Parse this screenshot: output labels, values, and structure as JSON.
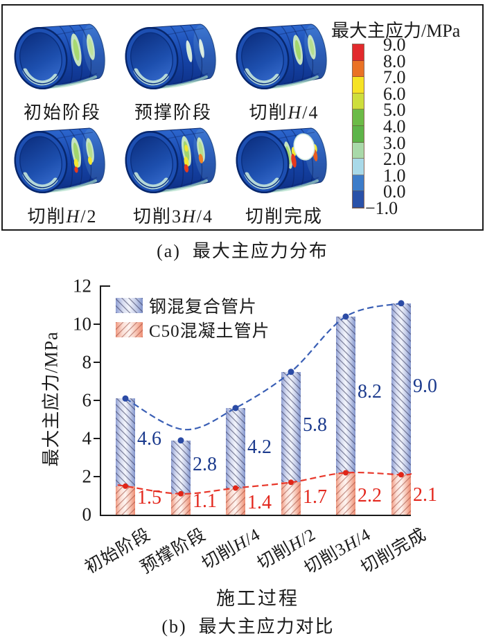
{
  "figure": {
    "panel_a": {
      "caption": "(a)  最大主应力分布",
      "stages": [
        {
          "label": "初始阶段"
        },
        {
          "label": "预撑阶段"
        },
        {
          "label": "切削H/4"
        },
        {
          "label": "切削H/2"
        },
        {
          "label": "切削3H/4"
        },
        {
          "label": "切削完成"
        }
      ],
      "colorbar": {
        "title": "最大主应力/MPa",
        "tick_labels": [
          "9.0",
          "8.0",
          "7.0",
          "6.0",
          "5.0",
          "4.0",
          "3.0",
          "2.0",
          "1.0",
          "0.0",
          "−1.0"
        ],
        "segment_colors": [
          "#e22a2c",
          "#ea7225",
          "#f6e324",
          "#cede3c",
          "#6cbb47",
          "#5eb449",
          "#a9d9a9",
          "#a9d9e8",
          "#3d7cc9",
          "#2a51a8"
        ]
      }
    },
    "panel_b": {
      "caption": "(b)  最大主应力对比"
    }
  },
  "chart_data": {
    "type": "bar",
    "title": "",
    "xlabel": "施工过程",
    "ylabel": "最大主应力/MPa",
    "categories": [
      "初始阶段",
      "预撑阶段",
      "切削H/4",
      "切削H/2",
      "切削3H/4",
      "切削完成"
    ],
    "series": [
      {
        "name": "钢混复合管片",
        "values": [
          4.6,
          2.8,
          4.2,
          5.8,
          8.2,
          9.0
        ],
        "labels": [
          "4.6",
          "2.8",
          "4.2",
          "5.8",
          "8.2",
          "9.0"
        ],
        "bar_color": "#8f9fd3",
        "label_color": "#1b3a8d",
        "hatch": "\\"
      },
      {
        "name": "C50混凝土管片",
        "values": [
          1.5,
          1.1,
          1.4,
          1.7,
          2.2,
          2.1
        ],
        "labels": [
          "1.5",
          "1.1",
          "1.4",
          "1.7",
          "2.2",
          "2.1"
        ],
        "bar_color": "#f09a82",
        "label_color": "#e3261c",
        "hatch": "/"
      }
    ],
    "stacked": true,
    "bar_totals": [
      6.1,
      3.9,
      5.6,
      7.5,
      10.4,
      11.1
    ],
    "ylim": [
      0,
      12
    ],
    "yticks": [
      "0",
      "2",
      "4",
      "6",
      "8",
      "10",
      "12"
    ],
    "grid": false,
    "legend_position": "upper-left",
    "trend_lines": [
      {
        "series": "钢混复合管片",
        "style": "dashed",
        "color": "#3a5fb5",
        "dot_color": "#2b4ba5"
      },
      {
        "series": "C50混凝土管片",
        "style": "dashed",
        "color": "#e8372a",
        "dot_color": "#e02618"
      }
    ]
  }
}
